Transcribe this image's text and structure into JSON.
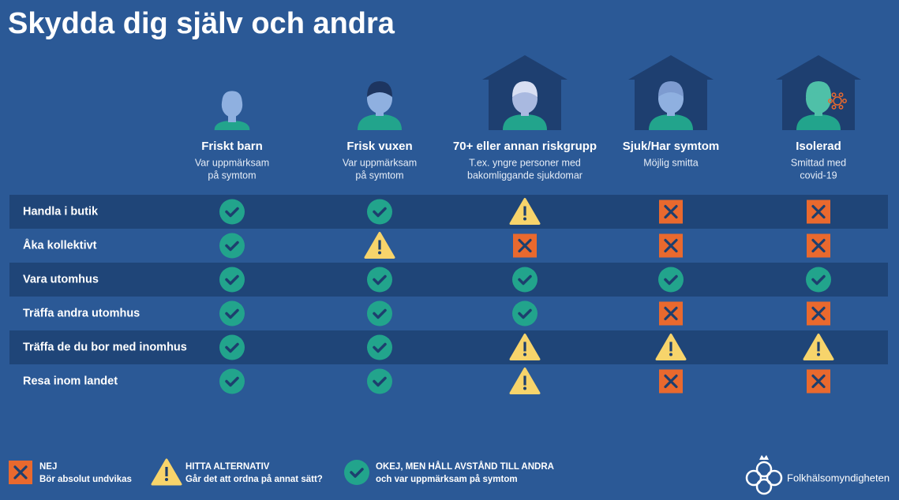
{
  "header": {
    "title": "Skydda dig själv och andra"
  },
  "columns": [
    {
      "name": "Friskt barn",
      "subtitle": [
        "Var uppmärksam",
        "på symtom"
      ]
    },
    {
      "name": "Frisk vuxen",
      "subtitle": [
        "Var uppmärksam",
        "på symtom"
      ]
    },
    {
      "name": "70+ eller annan riskgrupp",
      "subtitle": [
        "T.ex. yngre personer med",
        "bakomliggande sjukdomar"
      ]
    },
    {
      "name": "Sjuk/Har symtom",
      "subtitle": [
        "Möjlig smitta"
      ]
    },
    {
      "name": "Isolerad",
      "subtitle": [
        "Smittad med",
        "covid-19"
      ]
    }
  ],
  "rows": [
    {
      "label": "Handla i butik",
      "cells": [
        "ok",
        "ok",
        "warn",
        "no",
        "no"
      ]
    },
    {
      "label": "Åka kollektivt",
      "cells": [
        "ok",
        "warn",
        "no",
        "no",
        "no"
      ]
    },
    {
      "label": "Vara utomhus",
      "cells": [
        "ok",
        "ok",
        "ok",
        "ok",
        "ok"
      ]
    },
    {
      "label": "Träffa andra utomhus",
      "cells": [
        "ok",
        "ok",
        "ok",
        "no",
        "no"
      ]
    },
    {
      "label": "Träffa de du bor med inomhus",
      "cells": [
        "ok",
        "ok",
        "warn",
        "warn",
        "warn"
      ]
    },
    {
      "label": "Resa inom landet",
      "cells": [
        "ok",
        "ok",
        "warn",
        "no",
        "no"
      ]
    }
  ],
  "legend": [
    {
      "icon": "no",
      "title": "NEJ",
      "text": "Bör absolut undvikas"
    },
    {
      "icon": "warn",
      "title": "HITTA ALTERNATIV",
      "text": "Går det att ordna på annat sätt?"
    },
    {
      "icon": "ok",
      "title": "OKEJ, MEN HÅLL AVSTÅND TILL ANDRA",
      "text": "och var uppmärksam på symtom"
    }
  ],
  "footer": {
    "logo": "Folkhälsomyndigheten"
  }
}
